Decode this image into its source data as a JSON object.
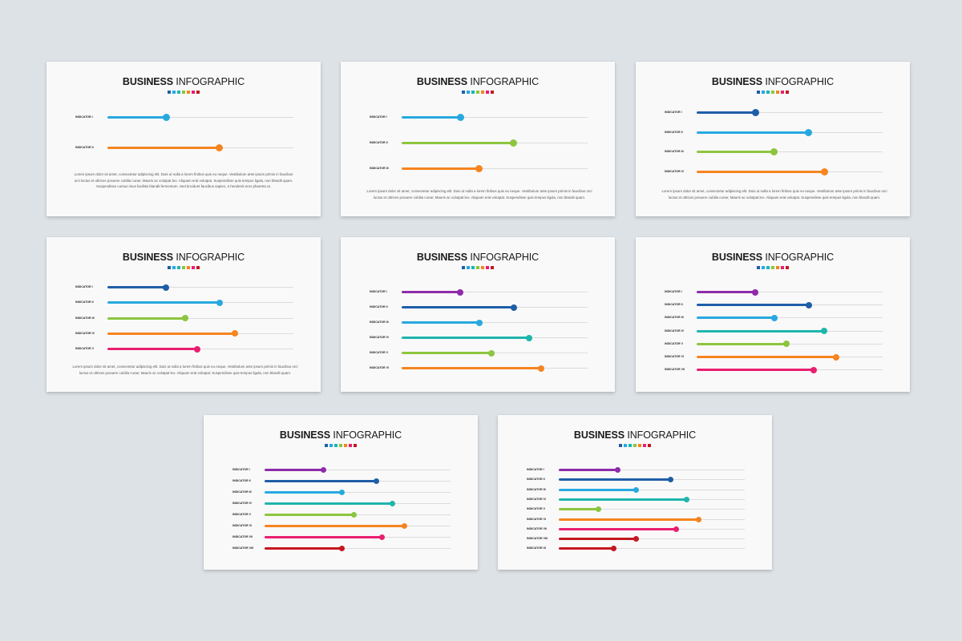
{
  "title_bold": "BUSINESS",
  "title_light": "INFOGRAPHIC",
  "palette": [
    "#1f5ea7",
    "#27a9e0",
    "#1eb5ad",
    "#8cc53f",
    "#f6841f",
    "#e91e70",
    "#c5171f"
  ],
  "body_text_a": "Lorem ipsum dolor sit amet, consectetur adipiscing elit. Duis ut nulla a lorem finibus quis eu neque. Vestibulum ante ipsum primis in faucibus orci luctus et ultrices posuere cubilia curae; Mauris ac volutpat leo. Aliquam erat volutpat. Suspendisse quis tempus ligula, non blandit quam. Suspendisse cursus risus facilisis blandit fermentum. Sed tincidunt faucibus sapien, a hendrerit eros pharetra ut.",
  "body_text_b": "Lorem ipsum dolor sit amet, consectetur adipiscing elit. Duis ut nulla a lorem finibus quis eu neque. Vestibulum ante ipsum primis in faucibus orci luctus et ultrices posuere cubilia curae; Mauris ac volutpat leo. Aliquam erat volutpat. Suspendisse quis tempus ligula, non blandit quam.",
  "chart_data": [
    {
      "type": "bar",
      "categories": [
        "INDICATOR I",
        "INDICATOR II"
      ],
      "values": [
        34,
        65
      ],
      "colors": [
        "#27a9e0",
        "#f6841f"
      ],
      "body": "a"
    },
    {
      "type": "bar",
      "categories": [
        "INDICATOR I",
        "INDICATOR II",
        "INDICATOR III"
      ],
      "values": [
        34,
        65,
        45
      ],
      "colors": [
        "#27a9e0",
        "#8cc53f",
        "#f6841f"
      ],
      "body": "b"
    },
    {
      "type": "bar",
      "categories": [
        "INDICATOR I",
        "INDICATOR II",
        "INDICATOR III",
        "INDICATOR IV"
      ],
      "values": [
        34,
        65,
        45,
        74
      ],
      "colors": [
        "#1f5ea7",
        "#27a9e0",
        "#8cc53f",
        "#f6841f"
      ],
      "body": "b"
    },
    {
      "type": "bar",
      "categories": [
        "INDICATOR I",
        "INDICATOR II",
        "INDICATOR III",
        "INDICATOR IV",
        "INDICATOR V"
      ],
      "values": [
        34,
        65,
        45,
        74,
        52
      ],
      "colors": [
        "#1f5ea7",
        "#27a9e0",
        "#8cc53f",
        "#f6841f",
        "#e91e70"
      ],
      "body": "b"
    },
    {
      "type": "bar",
      "categories": [
        "INDICATOR I",
        "INDICATOR II",
        "INDICATOR III",
        "INDICATOR IV",
        "INDICATOR V",
        "INDICATOR VI"
      ],
      "values": [
        34,
        65,
        45,
        74,
        52,
        81
      ],
      "colors": [
        "#8e2bab",
        "#1f5ea7",
        "#27a9e0",
        "#1eb5ad",
        "#8cc53f",
        "#f6841f"
      ],
      "body": null
    },
    {
      "type": "bar",
      "categories": [
        "INDICATOR I",
        "INDICATOR II",
        "INDICATOR III",
        "INDICATOR IV",
        "INDICATOR V",
        "INDICATOR VI",
        "INDICATOR VII"
      ],
      "values": [
        34,
        65,
        45,
        74,
        52,
        81,
        68
      ],
      "colors": [
        "#8e2bab",
        "#1f5ea7",
        "#27a9e0",
        "#1eb5ad",
        "#8cc53f",
        "#f6841f",
        "#e91e70"
      ],
      "body": null
    },
    {
      "type": "bar",
      "categories": [
        "INDICATOR I",
        "INDICATOR II",
        "INDICATOR III",
        "INDICATOR IV",
        "INDICATOR V",
        "INDICATOR VI",
        "INDICATOR VII",
        "INDICATOR VIII"
      ],
      "values": [
        34,
        65,
        45,
        74,
        52,
        81,
        68,
        45
      ],
      "colors": [
        "#8e2bab",
        "#1f5ea7",
        "#27a9e0",
        "#1eb5ad",
        "#8cc53f",
        "#f6841f",
        "#e91e70",
        "#c5171f"
      ],
      "body": null
    },
    {
      "type": "bar",
      "categories": [
        "INDICATOR I",
        "INDICATOR II",
        "INDICATOR III",
        "INDICATOR IV",
        "INDICATOR V",
        "INDICATOR VI",
        "INDICATOR VII",
        "INDICATOR VIII",
        "INDICATOR IX"
      ],
      "values": [
        34,
        65,
        45,
        74,
        23,
        81,
        68,
        45,
        32
      ],
      "colors": [
        "#8e2bab",
        "#1f5ea7",
        "#27a9e0",
        "#1eb5ad",
        "#8cc53f",
        "#f6841f",
        "#e91e70",
        "#c5171f",
        "#c5171f"
      ],
      "body": null
    }
  ]
}
